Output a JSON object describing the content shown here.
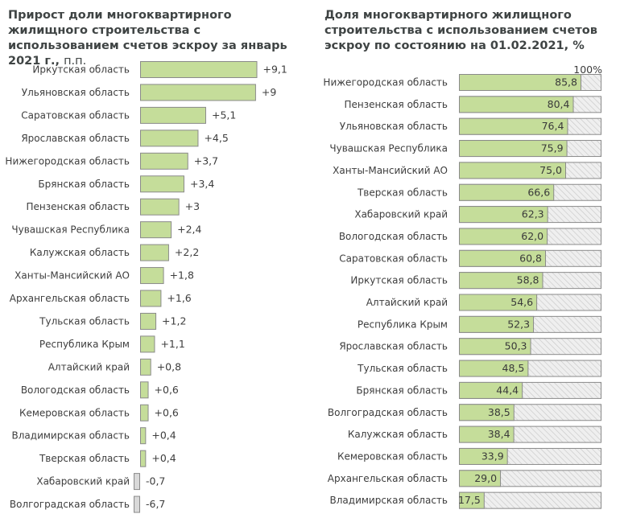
{
  "chart_data": [
    {
      "type": "bar",
      "orientation": "horizontal",
      "title": "Прирост доли многоквартирного жилищного строительства с использованием счетов эскроу за январь 2021 г.,",
      "unit": "п.п.",
      "xlabel": "",
      "ylabel": "",
      "grid": false,
      "legend": "none",
      "colors": {
        "positive": "#c5dd9a",
        "negative": "#d9d9d9",
        "border": "#8a8a8a"
      },
      "categories": [
        "Иркутская область",
        "Ульяновская область",
        "Саратовская область",
        "Ярославская область",
        "Нижегородская область",
        "Брянская область",
        "Пензенская область",
        "Чувашская Республика",
        "Калужская область",
        "Ханты-Мансийский АО",
        "Архангельская область",
        "Тульская область",
        "Республика Крым",
        "Алтайский край",
        "Вологодская область",
        "Кемеровская область",
        "Владимирская область",
        "Тверская область",
        "Хабаровский край",
        "Волгоградская область"
      ],
      "values": [
        9.1,
        9.0,
        5.1,
        4.5,
        3.7,
        3.4,
        3.0,
        2.4,
        2.2,
        1.8,
        1.6,
        1.2,
        1.1,
        0.8,
        0.6,
        0.6,
        0.4,
        0.4,
        -0.7,
        -6.7
      ],
      "value_labels": [
        "+9,1",
        "+9",
        "+5,1",
        "+4,5",
        "+3,7",
        "+3,4",
        "+3",
        "+2,4",
        "+2,2",
        "+1,8",
        "+1,6",
        "+1,2",
        "+1,1",
        "+0,8",
        "+0,6",
        "+0,6",
        "+0,4",
        "+0,4",
        "-0,7",
        "-6,7"
      ]
    },
    {
      "type": "bar",
      "orientation": "horizontal",
      "stacked_to_100": true,
      "title": "Доля многоквартирного жилищного строительства с использованием счетов эскроу по состоянию на 01.02.2021, %",
      "xlabel": "",
      "ylabel": "",
      "xlim": [
        0,
        100
      ],
      "max_label": "100%",
      "grid": false,
      "legend": "none",
      "colors": {
        "fill": "#c5dd9a",
        "remainder": "#ededed",
        "hatch": "#c6c6c6",
        "border": "#8a8a8a"
      },
      "categories": [
        "Нижегородская область",
        "Пензенская область",
        "Ульяновская область",
        "Чувашская Республика",
        "Ханты-Мансийский АО",
        "Тверская область",
        "Хабаровский край",
        "Вологодская область",
        "Саратовская область",
        "Иркутская область",
        "Алтайский край",
        "Республика Крым",
        "Ярославская область",
        "Тульская область",
        "Брянская область",
        "Волгоградская область",
        "Калужская область",
        "Кемеровская область",
        "Архангельская область",
        "Владимирская область"
      ],
      "values": [
        85.8,
        80.4,
        76.4,
        75.9,
        75.0,
        66.6,
        62.3,
        62.0,
        60.8,
        58.8,
        54.6,
        52.3,
        50.3,
        48.5,
        44.4,
        38.5,
        38.4,
        33.9,
        29.0,
        17.5
      ],
      "value_labels": [
        "85,8",
        "80,4",
        "76,4",
        "75,9",
        "75,0",
        "66,6",
        "62,3",
        "62,0",
        "60,8",
        "58,8",
        "54,6",
        "52,3",
        "50,3",
        "48,5",
        "44,4",
        "38,5",
        "38,4",
        "33,9",
        "29,0",
        "17,5"
      ]
    }
  ]
}
